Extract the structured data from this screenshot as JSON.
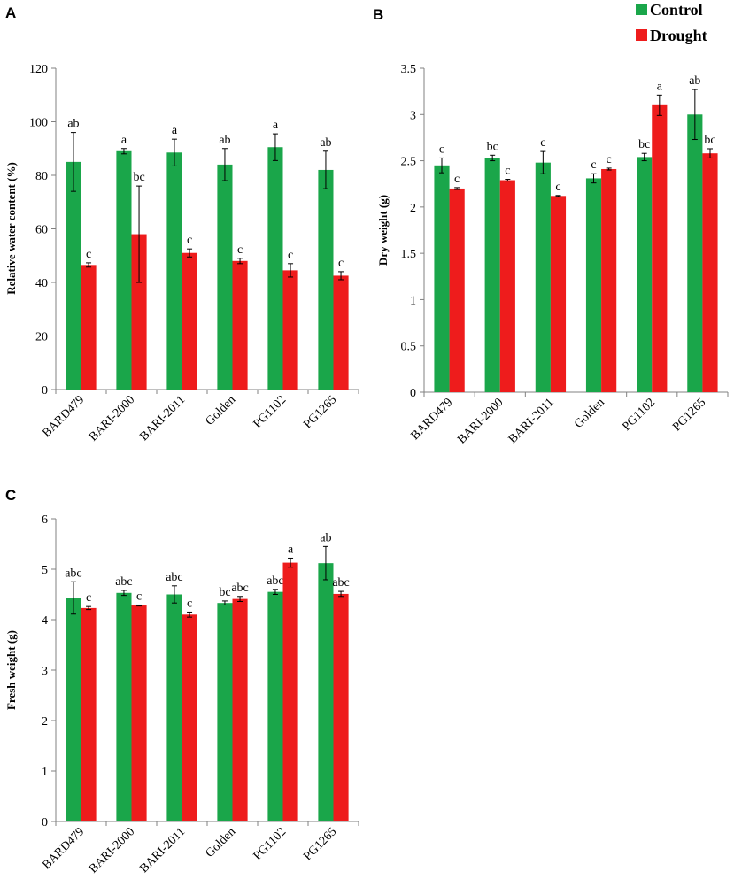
{
  "legend": {
    "items": [
      {
        "label": "Control",
        "color": "#1aa64a"
      },
      {
        "label": "Drought",
        "color": "#ee1c1c"
      }
    ]
  },
  "chart_data": [
    {
      "panel": "A",
      "type": "bar",
      "ylabel": "Relative water content (%)",
      "categories": [
        "BARD479",
        "BARI-2000",
        "BARI-2011",
        "Golden",
        "PG1102",
        "PG1265"
      ],
      "ylim": [
        0,
        120
      ],
      "yticks": [
        0,
        20,
        40,
        60,
        80,
        100,
        120
      ],
      "series": [
        {
          "name": "Control",
          "color": "#1aa64a",
          "values": [
            85,
            89,
            88.5,
            84,
            90.5,
            82
          ],
          "errors": [
            11,
            1,
            5,
            6,
            5,
            7
          ],
          "labels": [
            "ab",
            "a",
            "a",
            "ab",
            "a",
            "ab"
          ]
        },
        {
          "name": "Drought",
          "color": "#ee1c1c",
          "values": [
            46.5,
            58,
            51,
            48,
            44.5,
            42.5
          ],
          "errors": [
            0.8,
            18,
            1.5,
            1,
            2.5,
            1.5
          ],
          "labels": [
            "c",
            "bc",
            "c",
            "c",
            "c",
            "c"
          ]
        }
      ]
    },
    {
      "panel": "B",
      "type": "bar",
      "ylabel": "Dry weight (g)",
      "categories": [
        "BARD479",
        "BARI-2000",
        "BARI-2011",
        "Golden",
        "PG1102",
        "PG1265"
      ],
      "ylim": [
        0,
        3.5
      ],
      "yticks": [
        "0",
        "0.5",
        "1",
        "1.5",
        "2",
        "2.5",
        "3",
        "3.5"
      ],
      "series": [
        {
          "name": "Control",
          "color": "#1aa64a",
          "values": [
            2.45,
            2.53,
            2.48,
            2.31,
            2.54,
            3.0
          ],
          "errors": [
            0.08,
            0.03,
            0.12,
            0.05,
            0.04,
            0.27
          ],
          "labels": [
            "c",
            "bc",
            "c",
            "c",
            "bc",
            "ab"
          ]
        },
        {
          "name": "Drought",
          "color": "#ee1c1c",
          "values": [
            2.2,
            2.29,
            2.12,
            2.41,
            3.1,
            2.58
          ],
          "errors": [
            0.01,
            0.01,
            0.005,
            0.01,
            0.11,
            0.05
          ],
          "labels": [
            "c",
            "c",
            "c",
            "c",
            "a",
            "bc"
          ]
        }
      ]
    },
    {
      "panel": "C",
      "type": "bar",
      "ylabel": "Fresh weight (g)",
      "categories": [
        "BARD479",
        "BARI-2000",
        "BARI-2011",
        "Golden",
        "PG1102",
        "PG1265"
      ],
      "ylim": [
        0,
        6
      ],
      "yticks": [
        0,
        1,
        2,
        3,
        4,
        5,
        6
      ],
      "series": [
        {
          "name": "Control",
          "color": "#1aa64a",
          "values": [
            4.43,
            4.53,
            4.5,
            4.33,
            4.55,
            5.12
          ],
          "errors": [
            0.32,
            0.05,
            0.17,
            0.04,
            0.05,
            0.33
          ],
          "labels": [
            "abc",
            "abc",
            "abc",
            "bc",
            "abc",
            "ab"
          ]
        },
        {
          "name": "Drought",
          "color": "#ee1c1c",
          "values": [
            4.23,
            4.28,
            4.1,
            4.41,
            5.13,
            4.51
          ],
          "errors": [
            0.03,
            0.01,
            0.05,
            0.05,
            0.09,
            0.05
          ],
          "labels": [
            "c",
            "c",
            "c",
            "abc",
            "a",
            "abc"
          ]
        }
      ]
    }
  ]
}
